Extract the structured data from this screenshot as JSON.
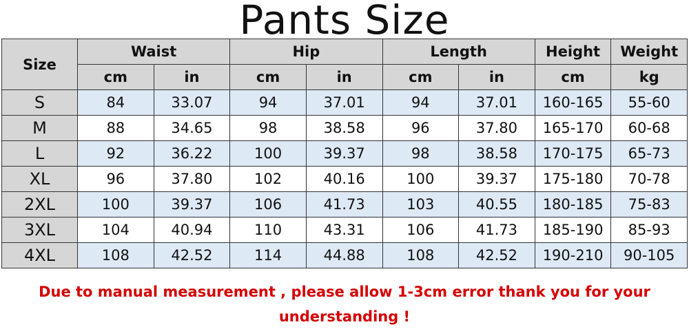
{
  "title": "Pants Size",
  "headers": {
    "size": "Size",
    "groups": [
      "Waist",
      "Hip",
      "Length",
      "Height",
      "Weight"
    ],
    "units": [
      "cm",
      "in",
      "cm",
      "in",
      "cm",
      "in",
      "cm",
      "kg"
    ]
  },
  "rows": [
    {
      "size": "S",
      "values": [
        "84",
        "33.07",
        "94",
        "37.01",
        "94",
        "37.01",
        "160-165",
        "55-60"
      ]
    },
    {
      "size": "M",
      "values": [
        "88",
        "34.65",
        "98",
        "38.58",
        "96",
        "37.80",
        "165-170",
        "60-68"
      ]
    },
    {
      "size": "L",
      "values": [
        "92",
        "36.22",
        "100",
        "39.37",
        "98",
        "38.58",
        "170-175",
        "65-73"
      ]
    },
    {
      "size": "XL",
      "values": [
        "96",
        "37.80",
        "102",
        "40.16",
        "100",
        "39.37",
        "175-180",
        "70-78"
      ]
    },
    {
      "size": "2XL",
      "values": [
        "100",
        "39.37",
        "106",
        "41.73",
        "103",
        "40.55",
        "180-185",
        "75-83"
      ]
    },
    {
      "size": "3XL",
      "values": [
        "104",
        "40.94",
        "110",
        "43.31",
        "106",
        "41.73",
        "185-190",
        "85-93"
      ]
    },
    {
      "size": "4XL",
      "values": [
        "108",
        "42.52",
        "114",
        "44.88",
        "108",
        "42.52",
        "190-210",
        "90-105"
      ]
    }
  ],
  "note": "Due to manual measurement , please allow 1-3cm error thank you for your understanding !",
  "colors": {
    "header_bg": "#d6d6d6",
    "row_alt_bg": "#dde9f5",
    "note": "#d40000"
  }
}
